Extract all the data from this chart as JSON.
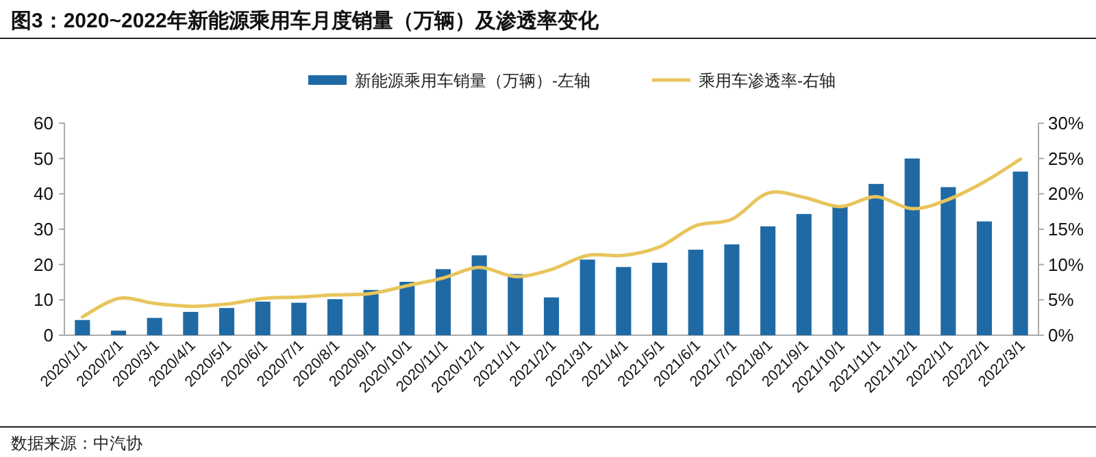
{
  "chart_data": {
    "type": "bar",
    "title": "**图3：2020~2022年新能源乘用车月度销量（万辆）及渗透率变化**",
    "categories": [
      "2020/1/1",
      "2020/2/1",
      "2020/3/1",
      "2020/4/1",
      "2020/5/1",
      "2020/6/1",
      "2020/7/1",
      "2020/8/1",
      "2020/9/1",
      "2020/10/1",
      "2020/11/1",
      "2020/12/1",
      "2021/1/1",
      "2021/2/1",
      "2021/3/1",
      "2021/4/1",
      "2021/5/1",
      "2021/6/1",
      "2021/7/1",
      "2021/8/1",
      "2021/9/1",
      "2021/10/1",
      "2021/11/1",
      "2021/12/1",
      "2022/1/1",
      "2022/2/1",
      "2022/3/1"
    ],
    "series": [
      {
        "name": "新能源乘用车销量（万辆）-左轴",
        "color": "#1f6aa5",
        "values": [
          4.3,
          1.3,
          4.9,
          6.6,
          7.7,
          9.5,
          9.2,
          10.2,
          12.8,
          15.1,
          18.7,
          22.6,
          17.3,
          10.7,
          21.4,
          19.3,
          20.5,
          24.2,
          25.7,
          30.8,
          34.3,
          36.4,
          42.8,
          50.0,
          41.9,
          32.2,
          46.3
        ]
      },
      {
        "name": "乘用车渗透率-右轴",
        "type": "line",
        "axis": "y2",
        "color": "#e8c55c",
        "values": [
          2.6,
          5.2,
          4.5,
          4.1,
          4.4,
          5.2,
          5.4,
          5.7,
          5.9,
          7.0,
          8.1,
          9.6,
          8.3,
          9.3,
          11.3,
          11.3,
          12.5,
          15.5,
          16.4,
          20.1,
          19.5,
          18.2,
          19.6,
          17.9,
          19.2,
          21.7,
          24.9
        ]
      }
    ],
    "ylim": [
      0,
      60
    ],
    "yticks": [
      0,
      10,
      20,
      30,
      40,
      50,
      60
    ],
    "y2lim": [
      0,
      30
    ],
    "y2ticks": [
      {
        "value": 0,
        "label": "0%"
      },
      {
        "value": 5,
        "label": "5%"
      },
      {
        "value": 10,
        "label": "10%"
      },
      {
        "value": 15,
        "label": "15%"
      },
      {
        "value": 20,
        "label": "20%"
      },
      {
        "value": 25,
        "label": "25%"
      },
      {
        "value": 30,
        "label": "30%"
      }
    ],
    "legend": "top",
    "grid": false,
    "marker": "none",
    "line_style": "solid",
    "annotations": [
      "数据来源：中汽协"
    ]
  }
}
